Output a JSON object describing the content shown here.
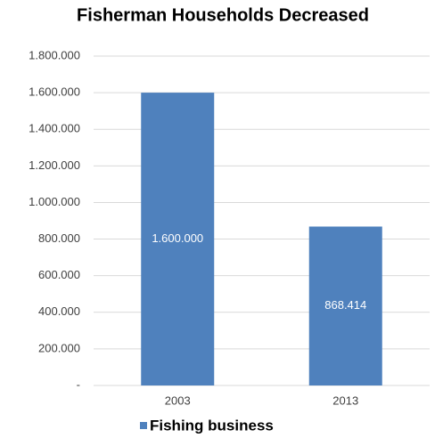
{
  "chart_data": {
    "type": "bar",
    "title": "Fisherman Households Decreased",
    "categories": [
      "2003",
      "2013"
    ],
    "series": [
      {
        "name": "Fishing business",
        "color": "#4f81bd",
        "values": [
          1600000,
          868414
        ],
        "value_labels": [
          "1.600.000",
          "868.414"
        ]
      }
    ],
    "ylim": [
      0,
      1800000
    ],
    "yticks": [
      {
        "value": 0,
        "label": "-"
      },
      {
        "value": 200000,
        "label": "200.000"
      },
      {
        "value": 400000,
        "label": "400.000"
      },
      {
        "value": 600000,
        "label": "600.000"
      },
      {
        "value": 800000,
        "label": "800.000"
      },
      {
        "value": 1000000,
        "label": "1.000.000"
      },
      {
        "value": 1200000,
        "label": "1.200.000"
      },
      {
        "value": 1400000,
        "label": "1.400.000"
      },
      {
        "value": 1600000,
        "label": "1.600.000"
      },
      {
        "value": 1800000,
        "label": "1.800.000"
      }
    ],
    "grid": true,
    "legend": "bottom"
  }
}
